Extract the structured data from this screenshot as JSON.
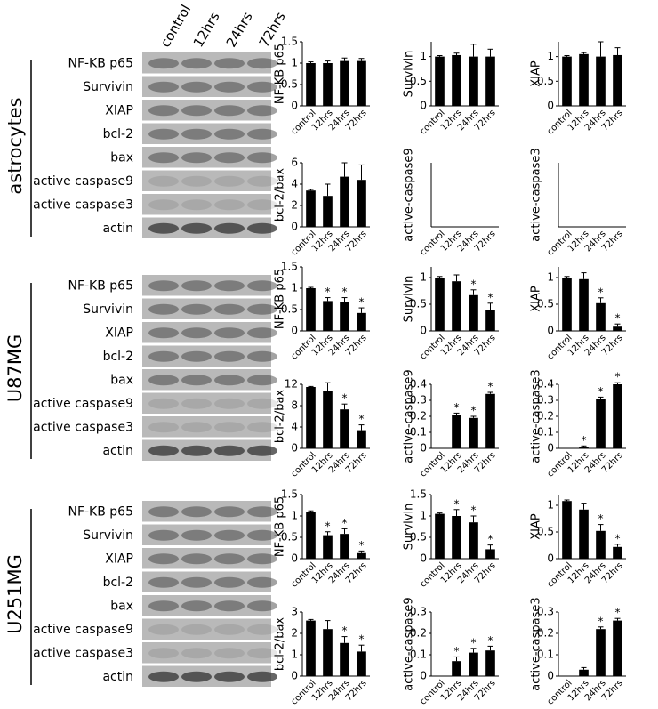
{
  "blots": {
    "lanes": [
      "control",
      "12hrs",
      "24hrs",
      "72hrs"
    ],
    "groups": [
      {
        "name": "astrocytes",
        "bands": [
          "NF-KB p65",
          "Survivin",
          "XIAP",
          "bcl-2",
          "bax",
          "active caspase9",
          "active caspase3",
          "actin"
        ]
      },
      {
        "name": "U87MG",
        "bands": [
          "NF-KB p65",
          "Survivin",
          "XIAP",
          "bcl-2",
          "bax",
          "active caspase9",
          "active caspase3",
          "actin"
        ]
      },
      {
        "name": "U251MG",
        "bands": [
          "NF-KB p65",
          "Survivin",
          "XIAP",
          "bcl-2",
          "bax",
          "active caspase9",
          "active caspase3",
          "actin"
        ]
      }
    ]
  },
  "chart_data": [
    {
      "type": "bar",
      "ylabel": "NF-KB p65",
      "categories": [
        "control",
        "12hrs",
        "24hrs",
        "72hrs"
      ],
      "values": [
        1,
        1,
        1.05,
        1.05
      ],
      "errors": [
        0.03,
        0.05,
        0.07,
        0.06
      ],
      "significance": [
        null,
        null,
        null,
        null
      ],
      "color": "#000000",
      "ylim": [
        0,
        1.5
      ],
      "yticks": [
        0,
        0.5,
        1,
        1.5
      ]
    },
    {
      "type": "bar",
      "ylabel": "Survivin",
      "categories": [
        "control",
        "12hrs",
        "24hrs",
        "72hrs"
      ],
      "values": [
        1,
        1.03,
        1,
        1
      ],
      "errors": [
        0.02,
        0.04,
        0.25,
        0.15
      ],
      "significance": [
        null,
        null,
        null,
        null
      ],
      "color": "#000000",
      "ylim": [
        0,
        1.3
      ],
      "yticks": [
        0,
        0.5,
        1
      ]
    },
    {
      "type": "bar",
      "ylabel": "XIAP",
      "categories": [
        "control",
        "12hrs",
        "24hrs",
        "72hrs"
      ],
      "values": [
        1,
        1.05,
        1,
        1.03
      ],
      "errors": [
        0.02,
        0.03,
        0.3,
        0.15
      ],
      "significance": [
        null,
        null,
        null,
        null
      ],
      "color": "#000000",
      "ylim": [
        0,
        1.3
      ],
      "yticks": [
        0,
        0.5,
        1
      ]
    },
    {
      "type": "bar",
      "ylabel": "bcl-2/bax",
      "categories": [
        "control",
        "12hrs",
        "24hrs",
        "72hrs"
      ],
      "values": [
        3.4,
        2.9,
        4.7,
        4.4
      ],
      "errors": [
        0.1,
        1.1,
        1.3,
        1.4
      ],
      "significance": [
        null,
        null,
        null,
        null
      ],
      "color": "#000000",
      "ylim": [
        0,
        6
      ],
      "yticks": [
        0,
        2,
        4,
        6
      ]
    },
    {
      "type": "bar",
      "ylabel": "active-caspase9",
      "categories": [
        "control",
        "12hrs",
        "24hrs",
        "72hrs"
      ],
      "values": [
        0,
        0,
        0,
        0
      ],
      "errors": [
        0,
        0,
        0,
        0
      ],
      "significance": [
        null,
        null,
        null,
        null
      ],
      "color": "#000000",
      "ylim": [
        0,
        1
      ],
      "yticks": []
    },
    {
      "type": "bar",
      "ylabel": "active-caspase3",
      "categories": [
        "control",
        "12hrs",
        "24hrs",
        "72hrs"
      ],
      "values": [
        0,
        0,
        0,
        0
      ],
      "errors": [
        0,
        0,
        0,
        0
      ],
      "significance": [
        null,
        null,
        null,
        null
      ],
      "color": "#000000",
      "ylim": [
        0,
        1
      ],
      "yticks": []
    },
    {
      "type": "bar",
      "ylabel": "NF-KB p65",
      "categories": [
        "control",
        "12hrs",
        "24hrs",
        "72hrs"
      ],
      "values": [
        1,
        0.7,
        0.68,
        0.42
      ],
      "errors": [
        0.02,
        0.08,
        0.1,
        0.12
      ],
      "significance": [
        null,
        "*",
        "*",
        "*"
      ],
      "color": "#000000",
      "ylim": [
        0,
        1.5
      ],
      "yticks": [
        0,
        0.5,
        1,
        1.5
      ]
    },
    {
      "type": "bar",
      "ylabel": "Survivin",
      "categories": [
        "control",
        "12hrs",
        "24hrs",
        "72hrs"
      ],
      "values": [
        1,
        0.93,
        0.67,
        0.4
      ],
      "errors": [
        0.02,
        0.12,
        0.1,
        0.12
      ],
      "significance": [
        null,
        null,
        "*",
        "*"
      ],
      "color": "#000000",
      "ylim": [
        0,
        1.2
      ],
      "yticks": [
        0,
        0.5,
        1
      ]
    },
    {
      "type": "bar",
      "ylabel": "XIAP",
      "categories": [
        "control",
        "12hrs",
        "24hrs",
        "72hrs"
      ],
      "values": [
        1,
        0.97,
        0.52,
        0.08
      ],
      "errors": [
        0.02,
        0.12,
        0.1,
        0.05
      ],
      "significance": [
        null,
        null,
        "*",
        "*"
      ],
      "color": "#000000",
      "ylim": [
        0,
        1.2
      ],
      "yticks": [
        0,
        0.5,
        1
      ]
    },
    {
      "type": "bar",
      "ylabel": "bcl-2/bax",
      "categories": [
        "control",
        "12hrs",
        "24hrs",
        "72hrs"
      ],
      "values": [
        11.5,
        10.8,
        7.3,
        3.4
      ],
      "errors": [
        0.1,
        1.5,
        1,
        1
      ],
      "significance": [
        null,
        null,
        "*",
        "*"
      ],
      "color": "#000000",
      "ylim": [
        0,
        12
      ],
      "yticks": [
        0,
        4,
        8,
        12
      ]
    },
    {
      "type": "bar",
      "ylabel": "active-caspase9",
      "categories": [
        "control",
        "12hrs",
        "24hrs",
        "72hrs"
      ],
      "values": [
        0,
        0.21,
        0.19,
        0.34
      ],
      "errors": [
        0,
        0.01,
        0.01,
        0.01
      ],
      "significance": [
        null,
        "*",
        "*",
        "*"
      ],
      "color": "#000000",
      "ylim": [
        0,
        0.4
      ],
      "yticks": [
        0,
        0.1,
        0.2,
        0.3,
        0.4
      ]
    },
    {
      "type": "bar",
      "ylabel": "active-caspase3",
      "categories": [
        "control",
        "12hrs",
        "24hrs",
        "72hrs"
      ],
      "values": [
        0,
        0.01,
        0.31,
        0.4
      ],
      "errors": [
        0,
        0.005,
        0.01,
        0.01
      ],
      "significance": [
        null,
        "*",
        "*",
        "*"
      ],
      "color": "#000000",
      "ylim": [
        0,
        0.4
      ],
      "yticks": [
        0,
        0.1,
        0.2,
        0.3,
        0.4
      ]
    },
    {
      "type": "bar",
      "ylabel": "NF-KB p65",
      "categories": [
        "control",
        "12hrs",
        "24hrs",
        "72hrs"
      ],
      "values": [
        1.1,
        0.55,
        0.58,
        0.13
      ],
      "errors": [
        0.02,
        0.08,
        0.12,
        0.05
      ],
      "significance": [
        null,
        "*",
        "*",
        "*"
      ],
      "color": "#000000",
      "ylim": [
        0,
        1.5
      ],
      "yticks": [
        0,
        0.5,
        1,
        1.5
      ]
    },
    {
      "type": "bar",
      "ylabel": "Survivin",
      "categories": [
        "control",
        "12hrs",
        "24hrs",
        "72hrs"
      ],
      "values": [
        1.05,
        1,
        0.85,
        0.22
      ],
      "errors": [
        0.02,
        0.15,
        0.15,
        0.1
      ],
      "significance": [
        null,
        "*",
        "*",
        "*"
      ],
      "color": "#000000",
      "ylim": [
        0,
        1.5
      ],
      "yticks": [
        0,
        0.5,
        1,
        1.5
      ]
    },
    {
      "type": "bar",
      "ylabel": "XIAP",
      "categories": [
        "control",
        "12hrs",
        "24hrs",
        "72hrs"
      ],
      "values": [
        1.08,
        0.92,
        0.52,
        0.22
      ],
      "errors": [
        0.02,
        0.12,
        0.12,
        0.05
      ],
      "significance": [
        null,
        null,
        "*",
        "*"
      ],
      "color": "#000000",
      "ylim": [
        0,
        1.2
      ],
      "yticks": [
        0,
        0.5,
        1
      ]
    },
    {
      "type": "bar",
      "ylabel": "bcl-2/bax",
      "categories": [
        "control",
        "12hrs",
        "24hrs",
        "72hrs"
      ],
      "values": [
        2.6,
        2.2,
        1.55,
        1.15
      ],
      "errors": [
        0.05,
        0.4,
        0.3,
        0.3
      ],
      "significance": [
        null,
        null,
        "*",
        "*"
      ],
      "color": "#000000",
      "ylim": [
        0,
        3
      ],
      "yticks": [
        0,
        1,
        2,
        3
      ]
    },
    {
      "type": "bar",
      "ylabel": "active-caspase9",
      "categories": [
        "control",
        "12hrs",
        "24hrs",
        "72hrs"
      ],
      "values": [
        0,
        0.07,
        0.11,
        0.12
      ],
      "errors": [
        0,
        0.02,
        0.02,
        0.02
      ],
      "significance": [
        null,
        "*",
        "*",
        "*"
      ],
      "color": "#000000",
      "ylim": [
        0,
        0.3
      ],
      "yticks": [
        0,
        0.1,
        0.2,
        0.3
      ]
    },
    {
      "type": "bar",
      "ylabel": "active-caspase3",
      "categories": [
        "control",
        "12hrs",
        "24hrs",
        "72hrs"
      ],
      "values": [
        0,
        0.03,
        0.22,
        0.26
      ],
      "errors": [
        0,
        0.01,
        0.01,
        0.01
      ],
      "significance": [
        null,
        null,
        "*",
        "*"
      ],
      "color": "#000000",
      "ylim": [
        0,
        0.3
      ],
      "yticks": [
        0,
        0.1,
        0.2,
        0.3
      ]
    }
  ]
}
